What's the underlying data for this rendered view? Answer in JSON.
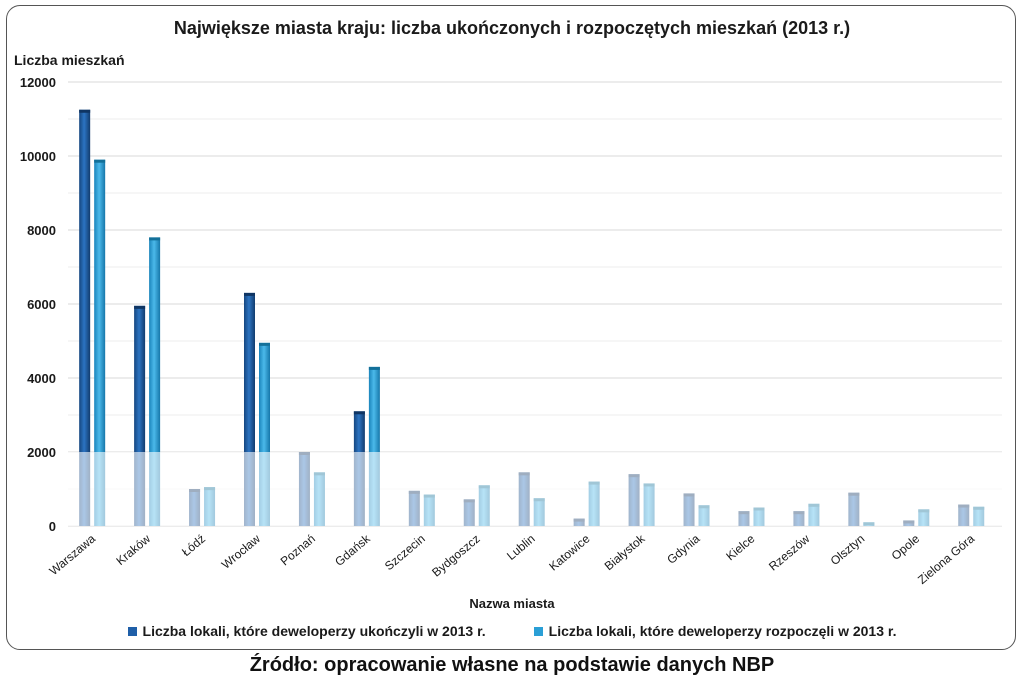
{
  "chart_data": {
    "type": "bar",
    "title": "Największe miasta kraju: liczba ukończonych i rozpoczętych mieszkań (2013 r.)",
    "ylabel": "Liczba mieszkań",
    "xlabel": "Nazwa miasta",
    "ylim": [
      0,
      12000
    ],
    "yticks": [
      0,
      2000,
      4000,
      6000,
      8000,
      10000,
      12000
    ],
    "grid": true,
    "legend_position": "bottom",
    "categories": [
      "Warszawa",
      "Kraków",
      "Łódź",
      "Wrocław",
      "Poznań",
      "Gdańsk",
      "Szczecin",
      "Bydgoszcz",
      "Lublin",
      "Katowice",
      "Białystok",
      "Gdynia",
      "Kielce",
      "Rzeszów",
      "Olsztyn",
      "Opole",
      "Zielona Góra"
    ],
    "series": [
      {
        "name": "Liczba lokali, które deweloperzy ukończyli w 2013 r.",
        "color": "#1f5fa8",
        "values": [
          11250,
          5950,
          1000,
          6300,
          2000,
          3100,
          950,
          720,
          1450,
          200,
          1400,
          880,
          400,
          400,
          900,
          150,
          580
        ]
      },
      {
        "name": "Liczba lokali, które deweloperzy rozpoczęli w 2013 r.",
        "color": "#2a9fd6",
        "values": [
          9900,
          7800,
          1050,
          4950,
          1450,
          4300,
          850,
          1100,
          750,
          1200,
          1150,
          560,
          500,
          600,
          100,
          450,
          520
        ]
      }
    ]
  },
  "source_note": "Źródło: opracowanie własne na podstawie danych NBP"
}
